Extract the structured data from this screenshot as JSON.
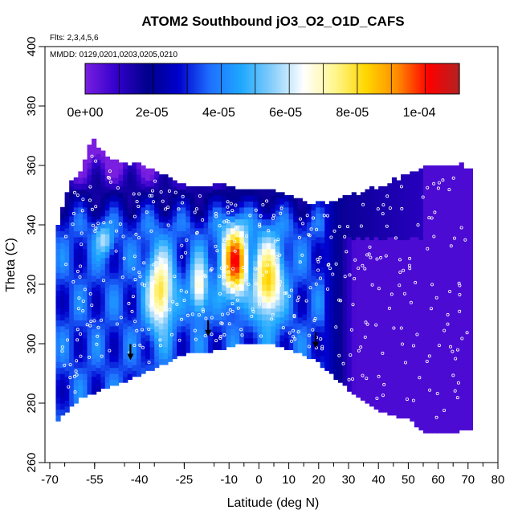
{
  "chart_data": {
    "type": "heatmap",
    "title": "ATOM2 Southbound jO3_O2_O1D_CAFS",
    "flights_note": "Flts: 2,3,4,5,6",
    "dates_note": "MMDD: 0129,0201,0203,0205,0210",
    "xlabel": "Latitude (deg N)",
    "ylabel": "Theta (C)",
    "xlim": [
      -70,
      80
    ],
    "ylim": [
      260,
      400
    ],
    "x_ticks": [
      -70,
      -55,
      -40,
      -25,
      -10,
      0,
      10,
      20,
      30,
      40,
      50,
      60,
      70,
      80
    ],
    "x_tick_labels": [
      "-70",
      "-55",
      "-40",
      "-25",
      "-10",
      "0",
      "10",
      "20",
      "30",
      "40",
      "50",
      "60",
      "70",
      "80"
    ],
    "y_ticks": [
      260,
      280,
      300,
      320,
      340,
      360,
      380,
      400
    ],
    "y_tick_labels": [
      "260",
      "280",
      "300",
      "320",
      "340",
      "360",
      "380",
      "400"
    ],
    "colorbar": {
      "range": [
        0,
        0.000112
      ],
      "ticks": [
        0,
        2e-05,
        4e-05,
        6e-05,
        8e-05,
        0.0001
      ],
      "tick_labels": [
        "0e+00",
        "2e-05",
        "4e-05",
        "6e-05",
        "8e-05",
        "1e-04"
      ],
      "colors": [
        "#7a1fe0",
        "#3300cc",
        "#00008b",
        "#0000cd",
        "#1e6fff",
        "#1ea8ff",
        "#87cefa",
        "#ffffff",
        "#fff68f",
        "#ffd700",
        "#ff8c00",
        "#ff0000",
        "#b22222"
      ]
    },
    "upper_boundary": [
      [
        -68,
        336
      ],
      [
        -64,
        352
      ],
      [
        -60,
        357
      ],
      [
        -56,
        368
      ],
      [
        -50,
        361
      ],
      [
        -40,
        359
      ],
      [
        -25,
        353
      ],
      [
        -10,
        352
      ],
      [
        0,
        352
      ],
      [
        10,
        349
      ],
      [
        20,
        346
      ],
      [
        30,
        349
      ],
      [
        40,
        352
      ],
      [
        50,
        356
      ],
      [
        60,
        360
      ],
      [
        66,
        360
      ],
      [
        71,
        358
      ]
    ],
    "lower_boundary": [
      [
        -68,
        274
      ],
      [
        -60,
        282
      ],
      [
        -50,
        286
      ],
      [
        -42,
        289
      ],
      [
        -35,
        292
      ],
      [
        -25,
        297
      ],
      [
        -15,
        298
      ],
      [
        -5,
        301
      ],
      [
        5,
        300
      ],
      [
        15,
        297
      ],
      [
        20,
        294
      ],
      [
        30,
        285
      ],
      [
        40,
        278
      ],
      [
        50,
        275
      ],
      [
        55,
        271
      ],
      [
        62,
        270
      ],
      [
        71,
        272
      ]
    ],
    "hotspots": [
      {
        "lat": -8,
        "theta": 328,
        "value": 0.000105,
        "sx": 4.5,
        "sy": 12
      },
      {
        "lat": 3,
        "theta": 322,
        "value": 8.5e-05,
        "sx": 5,
        "sy": 14
      },
      {
        "lat": -33,
        "theta": 318,
        "value": 8e-05,
        "sx": 4.5,
        "sy": 14
      },
      {
        "lat": -20,
        "theta": 320,
        "value": 7e-05,
        "sx": 3,
        "sy": 10
      },
      {
        "lat": -52,
        "theta": 335,
        "value": 6e-05,
        "sx": 3,
        "sy": 5
      }
    ],
    "arrows": [
      {
        "lat": -43,
        "theta": 295
      },
      {
        "lat": -17,
        "theta": 303
      },
      {
        "lat": 19,
        "theta": 299
      }
    ]
  }
}
